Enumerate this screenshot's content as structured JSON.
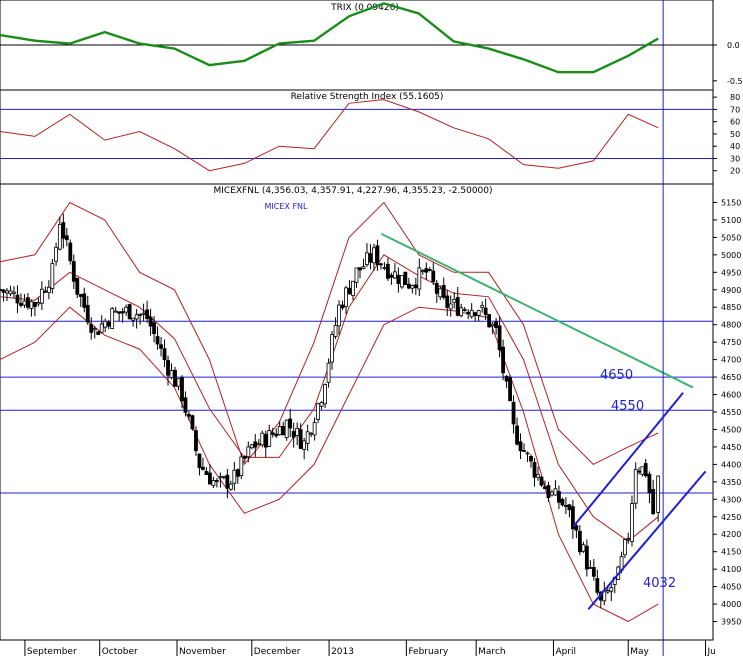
{
  "chart_data": [
    {
      "type": "line",
      "panel": "TRIX",
      "title": "TRIX (0.09426)",
      "y_ticks": [
        "0.0",
        "-0.5"
      ],
      "ylim": [
        -0.6,
        0.6
      ],
      "series": [
        {
          "name": "TRIX",
          "color": "#1a8c1a",
          "x": [
            "2012-08-22",
            "2012-09-05",
            "2012-09-19",
            "2012-10-03",
            "2012-10-17",
            "2012-10-31",
            "2012-11-14",
            "2012-11-28",
            "2012-12-12",
            "2012-12-26",
            "2013-01-09",
            "2013-01-23",
            "2013-02-06",
            "2013-02-20",
            "2013-03-06",
            "2013-03-20",
            "2013-04-03",
            "2013-04-17",
            "2013-05-01",
            "2013-05-13"
          ],
          "y": [
            0.14,
            0.06,
            0.02,
            0.18,
            0.02,
            -0.05,
            -0.28,
            -0.22,
            0.02,
            0.06,
            0.4,
            0.58,
            0.44,
            0.05,
            -0.05,
            -0.2,
            -0.38,
            -0.38,
            -0.15,
            0.09
          ]
        }
      ],
      "hlines": [
        0.0
      ]
    },
    {
      "type": "line",
      "panel": "RSI",
      "title": "Relative Strength Index (55.1605)",
      "y_ticks": [
        "80",
        "70",
        "60",
        "50",
        "40",
        "30",
        "20"
      ],
      "ylim": [
        10,
        85
      ],
      "series": [
        {
          "name": "RSI",
          "color": "#b22222",
          "x": [
            "2012-08-22",
            "2012-09-05",
            "2012-09-19",
            "2012-10-03",
            "2012-10-17",
            "2012-10-31",
            "2012-11-14",
            "2012-11-28",
            "2012-12-12",
            "2012-12-26",
            "2013-01-09",
            "2013-01-23",
            "2013-02-06",
            "2013-02-20",
            "2013-03-06",
            "2013-03-20",
            "2013-04-03",
            "2013-04-17",
            "2013-05-01",
            "2013-05-13"
          ],
          "y": [
            52,
            48,
            66,
            45,
            52,
            38,
            20,
            26,
            40,
            38,
            75,
            78,
            68,
            55,
            46,
            25,
            22,
            28,
            66,
            55
          ]
        }
      ],
      "hlines": [
        70,
        30
      ]
    },
    {
      "type": "candlestick",
      "panel": "Price",
      "title": "MICEXFNL (4,356.03, 4,357.91, 4,227.96, 4,355.23, -2.50000)",
      "subtitle": "MICEX FNL",
      "ylim": [
        3900,
        5200
      ],
      "y_ticks": [
        "5150",
        "5100",
        "5050",
        "5000",
        "4950",
        "4900",
        "4850",
        "4800",
        "4750",
        "4700",
        "4650",
        "4600",
        "4550",
        "4500",
        "4450",
        "4400",
        "4350",
        "4300",
        "4250",
        "4200",
        "4150",
        "4100",
        "4050",
        "4000",
        "3950"
      ],
      "x_labels": [
        {
          "date": "2012-09-01",
          "label": "September"
        },
        {
          "date": "2012-10-01",
          "label": "October"
        },
        {
          "date": "2012-11-01",
          "label": "November"
        },
        {
          "date": "2012-12-01",
          "label": "December"
        },
        {
          "date": "2013-01-01",
          "label": "2013"
        },
        {
          "date": "2013-02-01",
          "label": "February"
        },
        {
          "date": "2013-03-01",
          "label": "March"
        },
        {
          "date": "2013-04-01",
          "label": "April"
        },
        {
          "date": "2013-05-01",
          "label": "May"
        },
        {
          "date": "2013-06-01",
          "label": "Ju"
        }
      ],
      "close": {
        "x": [
          "2012-08-22",
          "2012-08-29",
          "2012-09-05",
          "2012-09-12",
          "2012-09-15",
          "2012-09-22",
          "2012-09-29",
          "2012-10-06",
          "2012-10-13",
          "2012-10-20",
          "2012-10-27",
          "2012-11-03",
          "2012-11-10",
          "2012-11-17",
          "2012-11-24",
          "2012-12-01",
          "2012-12-08",
          "2012-12-15",
          "2012-12-22",
          "2012-12-29",
          "2013-01-05",
          "2013-01-12",
          "2013-01-19",
          "2013-01-26",
          "2013-02-02",
          "2013-02-09",
          "2013-02-16",
          "2013-02-23",
          "2013-03-02",
          "2013-03-09",
          "2013-03-16",
          "2013-03-23",
          "2013-03-30",
          "2013-04-06",
          "2013-04-13",
          "2013-04-20",
          "2013-04-27",
          "2013-05-01",
          "2013-05-04",
          "2013-05-08",
          "2013-05-11",
          "2013-05-13"
        ],
        "y": [
          4900,
          4880,
          4860,
          4950,
          5100,
          4900,
          4780,
          4830,
          4840,
          4820,
          4700,
          4600,
          4400,
          4340,
          4360,
          4450,
          4480,
          4520,
          4460,
          4600,
          4850,
          4950,
          5000,
          4950,
          4920,
          4950,
          4860,
          4850,
          4850,
          4780,
          4500,
          4400,
          4320,
          4280,
          4150,
          4000,
          4080,
          4200,
          4400,
          4380,
          4260,
          4355
        ]
      },
      "bollinger": {
        "x": [
          "2012-08-22",
          "2012-09-05",
          "2012-09-19",
          "2012-10-03",
          "2012-10-17",
          "2012-10-31",
          "2012-11-14",
          "2012-11-28",
          "2012-12-12",
          "2012-12-26",
          "2013-01-09",
          "2013-01-23",
          "2013-02-06",
          "2013-02-20",
          "2013-03-06",
          "2013-03-20",
          "2013-04-03",
          "2013-04-17",
          "2013-05-01",
          "2013-05-13"
        ],
        "upper": [
          4980,
          5000,
          5150,
          5100,
          4950,
          4900,
          4700,
          4400,
          4520,
          4750,
          5050,
          5150,
          5000,
          4950,
          4950,
          4800,
          4500,
          4400,
          4450,
          4490
        ],
        "middle": [
          4880,
          4870,
          4950,
          4900,
          4850,
          4760,
          4560,
          4420,
          4420,
          4560,
          4850,
          5000,
          4940,
          4890,
          4880,
          4700,
          4400,
          4250,
          4180,
          4250
        ],
        "lower": [
          4700,
          4750,
          4850,
          4770,
          4730,
          4620,
          4400,
          4260,
          4300,
          4400,
          4600,
          4800,
          4850,
          4840,
          4820,
          4550,
          4200,
          4000,
          3950,
          4000
        ]
      },
      "trendlines": [
        {
          "color": "#3cb371",
          "from": [
            "2013-01-22",
            5060
          ],
          "to": [
            "2013-05-27",
            4620
          ]
        },
        {
          "color": "#1f1fd6",
          "from": [
            "2013-04-09",
            4222
          ],
          "to": [
            "2013-05-23",
            4605
          ]
        },
        {
          "color": "#1f1fd6",
          "from": [
            "2013-04-15",
            3985
          ],
          "to": [
            "2013-06-01",
            4380
          ]
        }
      ],
      "hlines": [
        4810,
        4650,
        4555,
        4318
      ],
      "annotations": [
        "4650",
        "4550",
        "4032"
      ]
    }
  ]
}
